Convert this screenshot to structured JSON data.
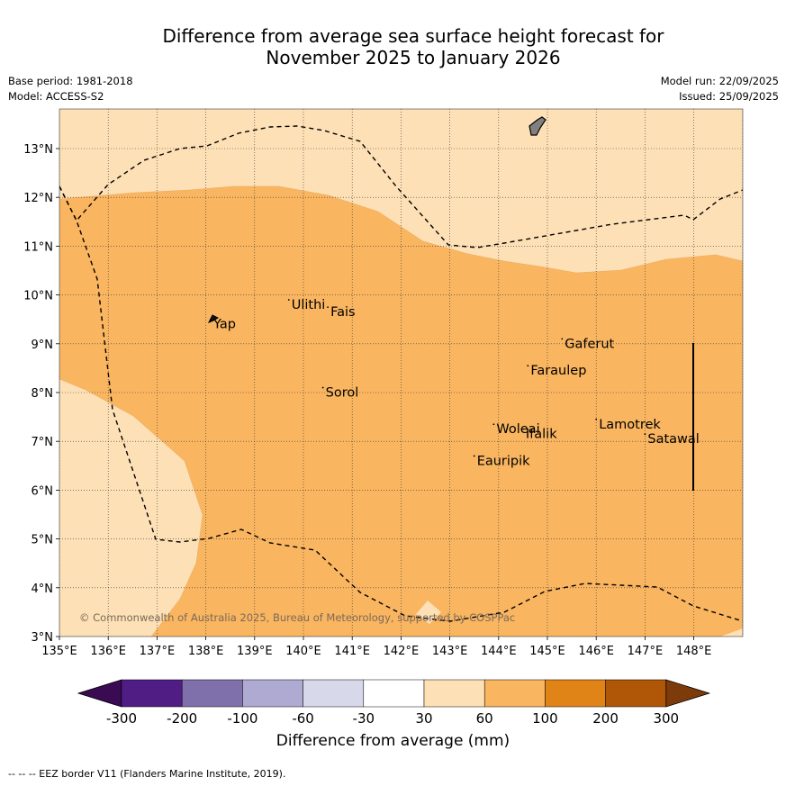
{
  "title": {
    "line1": "Difference from average sea surface height forecast for",
    "line2": "November 2025 to January 2026"
  },
  "meta": {
    "base_period": "Base period: 1981-2018",
    "model": "Model: ACCESS-S2",
    "model_run": "Model run: 22/09/2025",
    "issued": "Issued: 25/09/2025"
  },
  "map": {
    "lat_labels": [
      "3°N",
      "4°N",
      "5°N",
      "6°N",
      "7°N",
      "8°N",
      "9°N",
      "10°N",
      "11°N",
      "12°N",
      "13°N"
    ],
    "lon_labels": [
      "135°E",
      "136°E",
      "137°E",
      "138°E",
      "139°E",
      "140°E",
      "141°E",
      "142°E",
      "143°E",
      "144°E",
      "145°E",
      "146°E",
      "147°E",
      "148°E"
    ],
    "places": [
      {
        "name": "Yap",
        "lon": 138.1,
        "lat": 9.5
      },
      {
        "name": "Ulithi",
        "lon": 139.7,
        "lat": 9.9
      },
      {
        "name": "Fais",
        "lon": 140.5,
        "lat": 9.75
      },
      {
        "name": "Sorol",
        "lon": 140.4,
        "lat": 8.1
      },
      {
        "name": "Gaferut",
        "lon": 145.3,
        "lat": 9.1
      },
      {
        "name": "Faraulep",
        "lon": 144.6,
        "lat": 8.55
      },
      {
        "name": "Woleai",
        "lon": 143.9,
        "lat": 7.35
      },
      {
        "name": "Ifalik",
        "lon": 144.5,
        "lat": 7.25
      },
      {
        "name": "Lamotrek",
        "lon": 146.0,
        "lat": 7.45
      },
      {
        "name": "Satawal",
        "lon": 147.0,
        "lat": 7.15
      },
      {
        "name": "Eauripik",
        "lon": 143.5,
        "lat": 6.7
      }
    ],
    "copyright": "© Commonwealth of Australia 2025, Bureau of Meteorology, supported by COSPPac"
  },
  "colorbar": {
    "colors": [
      "#3a0a52",
      "#4f1d84",
      "#7f70ab",
      "#aeaad2",
      "#d8d8eb",
      "#ffffff",
      "#fde0b6",
      "#f9b560",
      "#e08418",
      "#b05607",
      "#7d3b0c"
    ],
    "ticks": [
      "-300",
      "-200",
      "-100",
      "-60",
      "-30",
      "30",
      "60",
      "100",
      "200",
      "300"
    ],
    "title": "Difference from average (mm)"
  },
  "footer": "--  --  -- EEZ border V11 (Flanders Marine Institute, 2019)."
}
